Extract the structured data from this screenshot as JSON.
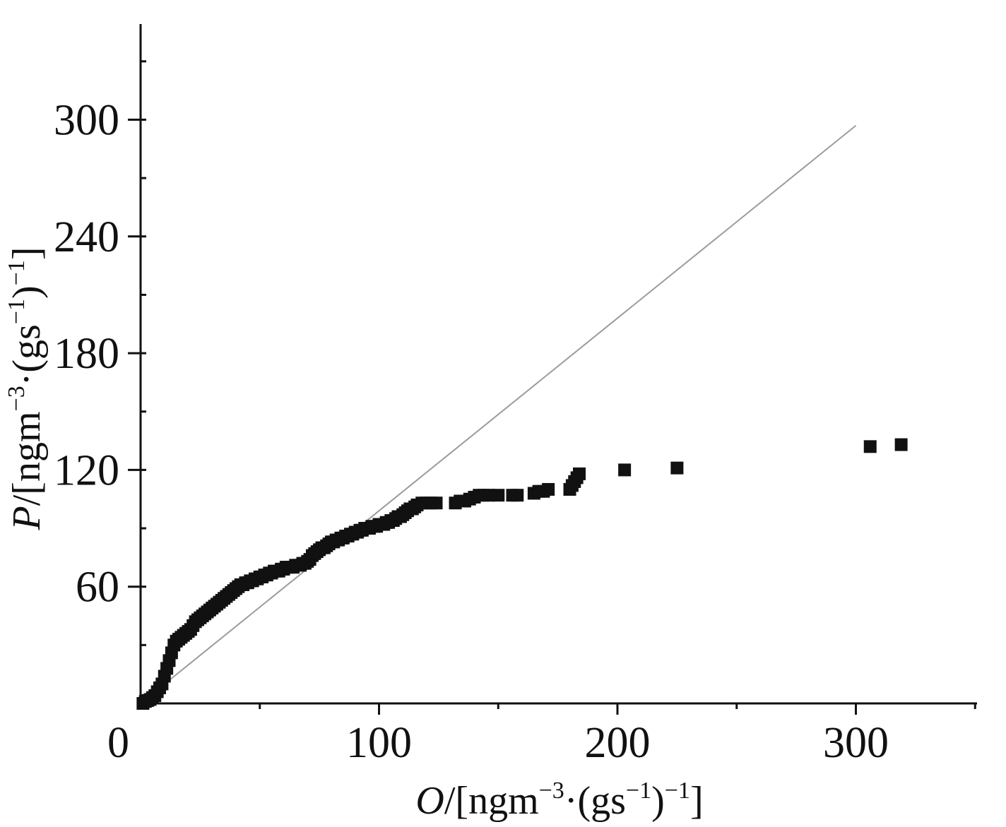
{
  "chart_data": {
    "type": "scatter",
    "xlabel": {
      "var": "O",
      "unit_pre": "/[ngm",
      "sup1": "−3",
      "mid": "·(gs",
      "sup2": "−1",
      "close": ")",
      "sup3": "−1",
      "end": "]"
    },
    "ylabel": {
      "var": "P",
      "unit_pre": "/[ngm",
      "sup1": "−3",
      "mid": "·(gs",
      "sup2": "−1",
      "close": ")",
      "sup3": "−1",
      "end": "]"
    },
    "xlim": [
      0,
      350
    ],
    "ylim": [
      0,
      360
    ],
    "x_ticks": [
      0,
      100,
      200,
      300
    ],
    "x_tick_labels": [
      "0",
      "100",
      "200",
      "300"
    ],
    "y_ticks": [
      60,
      120,
      180,
      240,
      300
    ],
    "y_tick_labels": [
      "60",
      "120",
      "180",
      "240",
      "300"
    ],
    "x_minor_step": 50,
    "y_minor_step": 30,
    "reference_line": {
      "from": [
        0,
        0
      ],
      "to": [
        300,
        297
      ]
    },
    "marker": "square",
    "colors": {
      "points": "#111111",
      "reference_line": "#a09a9a",
      "axis": "#111111"
    },
    "points": [
      [
        1,
        0
      ],
      [
        2,
        1
      ],
      [
        3,
        1.5
      ],
      [
        4,
        2
      ],
      [
        5,
        3
      ],
      [
        6,
        4
      ],
      [
        7,
        6
      ],
      [
        8,
        8
      ],
      [
        9,
        10
      ],
      [
        10,
        14
      ],
      [
        11,
        18
      ],
      [
        12,
        22
      ],
      [
        13,
        26
      ],
      [
        14,
        30
      ],
      [
        15,
        32
      ],
      [
        16,
        33
      ],
      [
        17,
        34
      ],
      [
        18,
        35
      ],
      [
        19,
        36
      ],
      [
        20,
        37
      ],
      [
        21,
        38
      ],
      [
        22,
        40
      ],
      [
        23,
        42
      ],
      [
        24,
        43
      ],
      [
        25,
        44
      ],
      [
        26,
        45
      ],
      [
        27,
        46
      ],
      [
        28,
        47
      ],
      [
        29,
        48
      ],
      [
        30,
        49
      ],
      [
        31,
        50
      ],
      [
        32,
        51
      ],
      [
        33,
        52
      ],
      [
        34,
        53
      ],
      [
        35,
        54
      ],
      [
        36,
        55
      ],
      [
        37,
        56
      ],
      [
        38,
        57
      ],
      [
        39,
        58
      ],
      [
        40,
        59
      ],
      [
        41,
        60
      ],
      [
        42,
        61
      ],
      [
        43,
        61
      ],
      [
        44,
        62
      ],
      [
        45,
        62
      ],
      [
        46,
        63
      ],
      [
        47,
        63
      ],
      [
        48,
        64
      ],
      [
        49,
        64
      ],
      [
        50,
        65
      ],
      [
        51,
        65
      ],
      [
        52,
        66
      ],
      [
        53,
        66
      ],
      [
        54,
        67
      ],
      [
        55,
        67
      ],
      [
        56,
        68
      ],
      [
        57,
        68
      ],
      [
        58,
        68
      ],
      [
        59,
        69
      ],
      [
        60,
        69
      ],
      [
        61,
        70
      ],
      [
        62,
        70
      ],
      [
        63,
        70
      ],
      [
        64,
        70
      ],
      [
        65,
        71
      ],
      [
        66,
        71
      ],
      [
        67,
        71
      ],
      [
        68,
        72
      ],
      [
        69,
        72
      ],
      [
        70,
        73
      ],
      [
        71,
        74
      ],
      [
        72,
        76
      ],
      [
        73,
        77
      ],
      [
        74,
        78
      ],
      [
        75,
        79
      ],
      [
        76,
        80
      ],
      [
        77,
        80
      ],
      [
        78,
        81
      ],
      [
        79,
        82
      ],
      [
        80,
        83
      ],
      [
        81,
        83
      ],
      [
        82,
        84
      ],
      [
        83,
        84
      ],
      [
        84,
        85
      ],
      [
        85,
        85
      ],
      [
        86,
        86
      ],
      [
        87,
        86
      ],
      [
        88,
        87
      ],
      [
        89,
        87
      ],
      [
        90,
        88
      ],
      [
        91,
        88
      ],
      [
        92,
        89
      ],
      [
        93,
        89
      ],
      [
        94,
        90
      ],
      [
        95,
        90
      ],
      [
        96,
        90
      ],
      [
        97,
        91
      ],
      [
        98,
        91
      ],
      [
        99,
        91
      ],
      [
        100,
        92
      ],
      [
        101,
        92
      ],
      [
        102,
        92
      ],
      [
        103,
        93
      ],
      [
        104,
        93
      ],
      [
        105,
        94
      ],
      [
        106,
        94
      ],
      [
        107,
        95
      ],
      [
        108,
        96
      ],
      [
        109,
        96
      ],
      [
        110,
        97
      ],
      [
        111,
        98
      ],
      [
        112,
        99
      ],
      [
        113,
        100
      ],
      [
        114,
        100
      ],
      [
        115,
        101
      ],
      [
        116,
        102
      ],
      [
        118,
        103
      ],
      [
        120,
        103
      ],
      [
        122,
        103
      ],
      [
        124,
        103
      ],
      [
        132,
        103
      ],
      [
        134,
        104
      ],
      [
        136,
        104
      ],
      [
        138,
        105
      ],
      [
        140,
        106
      ],
      [
        142,
        107
      ],
      [
        144,
        107
      ],
      [
        146,
        107
      ],
      [
        150,
        107
      ],
      [
        156,
        107
      ],
      [
        158,
        107
      ],
      [
        165,
        108
      ],
      [
        167,
        109
      ],
      [
        169,
        109
      ],
      [
        171,
        110
      ],
      [
        180,
        110
      ],
      [
        181,
        112
      ],
      [
        182,
        114
      ],
      [
        183,
        116
      ],
      [
        184,
        118
      ],
      [
        203,
        120
      ],
      [
        225,
        121
      ],
      [
        306,
        132
      ],
      [
        319,
        133
      ]
    ]
  }
}
